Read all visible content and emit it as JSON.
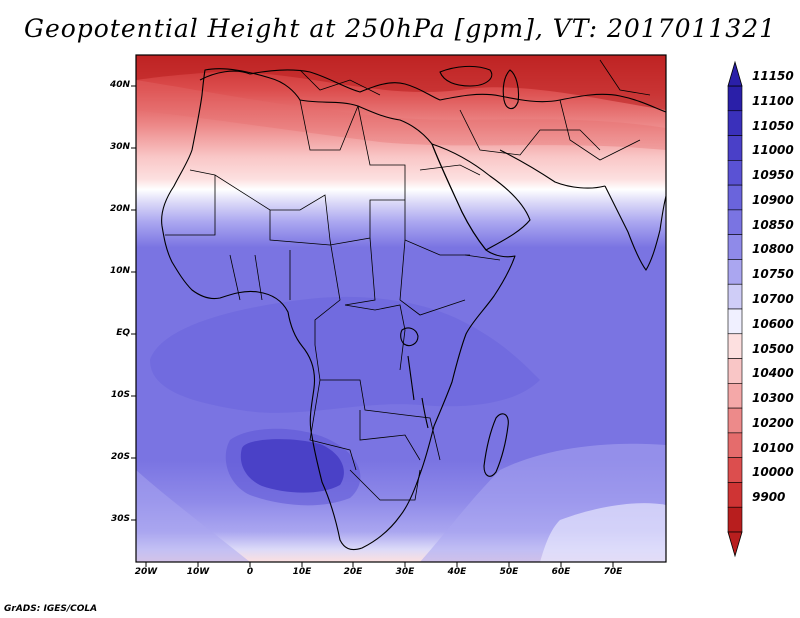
{
  "title": "Geopotential Height at 250hPa [gpm], VT: 2017011321",
  "footer": "GrADS: IGES/COLA",
  "lat_labels": [
    "40N",
    "30N",
    "20N",
    "10N",
    "EQ",
    "10S",
    "20S",
    "30S"
  ],
  "lon_labels": [
    "20W",
    "10W",
    "0",
    "10E",
    "20E",
    "30E",
    "40E",
    "50E",
    "60E",
    "70E"
  ],
  "colorbar": {
    "labels": [
      "11150",
      "11100",
      "11050",
      "11000",
      "10950",
      "10900",
      "10850",
      "10800",
      "10750",
      "10700",
      "10600",
      "10500",
      "10400",
      "10300",
      "10200",
      "10100",
      "10000",
      "9900"
    ],
    "colors": [
      "#2a1fa8",
      "#3a30bb",
      "#4a40c8",
      "#5a52d4",
      "#6a64dc",
      "#7a74e2",
      "#8f8ae9",
      "#aaa6f0",
      "#cfcdf7",
      "#f0f0ff",
      "#fde0e0",
      "#f9c6c6",
      "#f4a8a8",
      "#ed8a8a",
      "#e56c6c",
      "#dc4e4e",
      "#cf3434",
      "#b81e1e"
    ]
  },
  "chart_data": {
    "type": "heatmap",
    "title": "Geopotential Height at 250hPa [gpm], VT: 2017011321",
    "x_range": [
      "20W",
      "80E"
    ],
    "y_range": [
      "36S",
      "45N"
    ],
    "value_range": [
      9900,
      11150
    ],
    "units": "gpm"
  }
}
